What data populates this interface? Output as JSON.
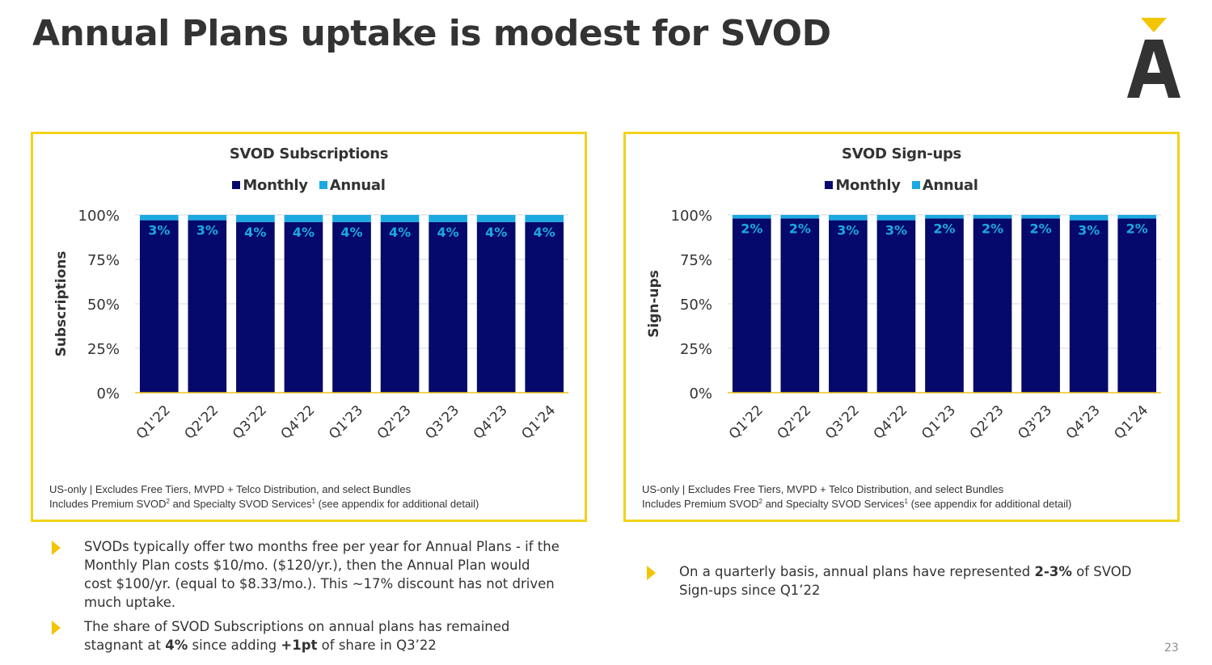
{
  "page": {
    "title": "Annual Plans uptake is modest for SVOD",
    "page_number": "23"
  },
  "colors": {
    "monthly": "#05096a",
    "annual": "#1ba9e1",
    "border": "#f3d21a",
    "bullet": "#f3c400",
    "gridline": "#d9d9d9",
    "baseline": "#f0c419"
  },
  "left_panel": {
    "footnote_line1": "US-only | Excludes Free Tiers, MVPD + Telco Distribution, and select Bundles",
    "footnote_line2_a": "Includes Premium SVOD",
    "footnote_sup1": "2",
    "footnote_line2_b": " and Specialty SVOD Services",
    "footnote_sup2": "1",
    "footnote_line2_c": " (see appendix for additional detail)"
  },
  "right_panel": {
    "footnote_line1": "US-only | Excludes Free Tiers, MVPD + Telco Distribution, and select Bundles",
    "footnote_line2_a": "Includes Premium SVOD",
    "footnote_sup1": "2",
    "footnote_line2_b": " and Specialty SVOD Services",
    "footnote_sup2": "1",
    "footnote_line2_c": " (see appendix for additional detail)"
  },
  "bullets_left": [
    {
      "lines": [
        "SVODs typically offer two months free per year for Annual Plans - if the",
        "Monthly Plan costs $10/mo. ($120/yr.), then the Annual Plan would",
        "cost $100/yr. (equal to $8.33/mo.). This ~17% discount has not driven",
        "much uptake."
      ]
    },
    {
      "line1": "The share of SVOD Subscriptions on annual plans has remained",
      "line2_a": "stagnant at ",
      "line2_b": "4%",
      "line2_c": " since adding ",
      "line2_d": "+1pt",
      "line2_e": " of share in Q3’22"
    }
  ],
  "bullet_right": {
    "line1_a": "On a quarterly basis, annual plans have represented ",
    "line1_b": "2-3%",
    "line1_c": " of SVOD",
    "line2": "Sign-ups since Q1’22"
  },
  "chart_data": [
    {
      "type": "bar",
      "stacked": true,
      "title": "SVOD Subscriptions",
      "ylabel": "Subscriptions",
      "xlabel": "",
      "ylim": [
        0,
        100
      ],
      "yticks": [
        "0%",
        "25%",
        "50%",
        "75%",
        "100%"
      ],
      "legend": [
        "Monthly",
        "Annual"
      ],
      "legend_position": "top",
      "grid": true,
      "categories": [
        "Q1'22",
        "Q2'22",
        "Q3'22",
        "Q4'22",
        "Q1'23",
        "Q2'23",
        "Q3'23",
        "Q4'23",
        "Q1'24"
      ],
      "series": [
        {
          "name": "Monthly",
          "values": [
            97,
            97,
            96,
            96,
            96,
            96,
            96,
            96,
            96
          ]
        },
        {
          "name": "Annual",
          "values": [
            3,
            3,
            4,
            4,
            4,
            4,
            4,
            4,
            4
          ]
        }
      ],
      "data_labels": [
        "3%",
        "3%",
        "4%",
        "4%",
        "4%",
        "4%",
        "4%",
        "4%",
        "4%"
      ]
    },
    {
      "type": "bar",
      "stacked": true,
      "title": "SVOD Sign-ups",
      "ylabel": "Sign-ups",
      "xlabel": "",
      "ylim": [
        0,
        100
      ],
      "yticks": [
        "0%",
        "25%",
        "50%",
        "75%",
        "100%"
      ],
      "legend": [
        "Monthly",
        "Annual"
      ],
      "legend_position": "top",
      "grid": true,
      "categories": [
        "Q1'22",
        "Q2'22",
        "Q3'22",
        "Q4'22",
        "Q1'23",
        "Q2'23",
        "Q3'23",
        "Q4'23",
        "Q1'24"
      ],
      "series": [
        {
          "name": "Monthly",
          "values": [
            98,
            98,
            97,
            97,
            98,
            98,
            98,
            97,
            98
          ]
        },
        {
          "name": "Annual",
          "values": [
            2,
            2,
            3,
            3,
            2,
            2,
            2,
            3,
            2
          ]
        }
      ],
      "data_labels": [
        "2%",
        "2%",
        "3%",
        "3%",
        "2%",
        "2%",
        "2%",
        "3%",
        "2%"
      ]
    }
  ]
}
